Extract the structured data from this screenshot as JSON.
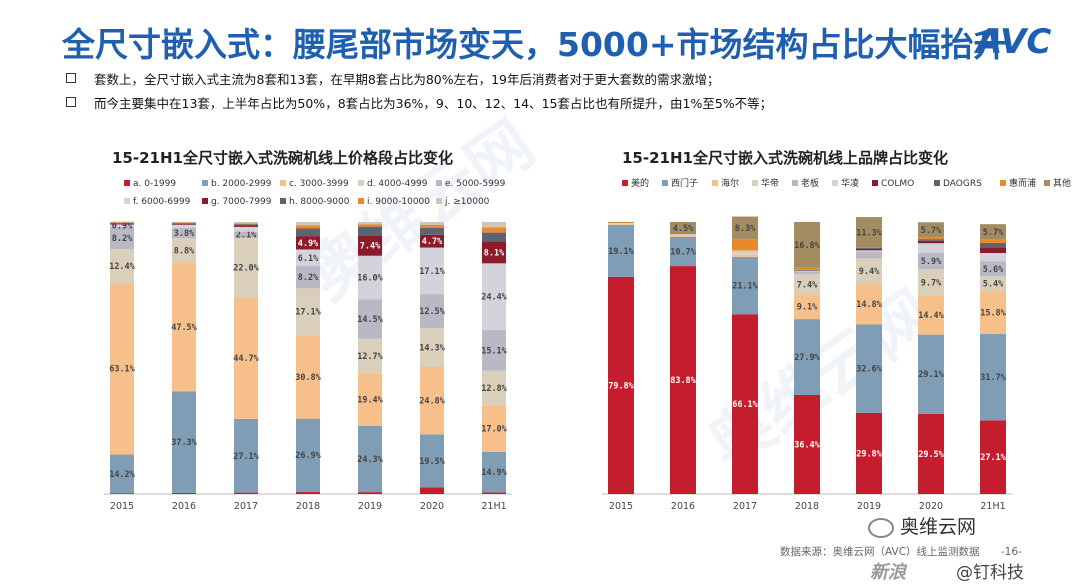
{
  "header": {
    "title": "全尺寸嵌入式：腰尾部市场变天，5000+市场结构占比大幅抬升",
    "logo": "AVC"
  },
  "bullets": [
    "套数上，全尺寸嵌入式主流为8套和13套，在早期8套占比为80%左右，19年后消费者对于更大套数的需求激增；",
    "而今主要集中在13套，上半年占比为50%，8套占比为36%，9、10、12、14、15套占比也有所提升，由1%至5%不等；"
  ],
  "footer": {
    "source": "数据来源：奥维云网（AVC）线上监测数据",
    "page": "-16-",
    "wechat": "奥维云网",
    "brand_left": "新浪",
    "brand_right": "@钉科技"
  },
  "watermark": "奥维云网",
  "chart_data": [
    {
      "type": "bar",
      "stacked": true,
      "title": "15-21H1全尺寸嵌入式洗碗机线上价格段占比变化",
      "categories": [
        "2015",
        "2016",
        "2017",
        "2018",
        "2019",
        "2020",
        "21H1"
      ],
      "ylim": [
        0,
        100
      ],
      "legend_position": "top",
      "series": [
        {
          "name": "a. 0-1999",
          "color": "#c41e2e",
          "values": [
            0.3,
            0.4,
            0.5,
            0.8,
            0.7,
            2.4,
            0.6
          ],
          "labels": [
            "",
            "",
            "",
            "",
            "",
            "",
            ""
          ]
        },
        {
          "name": "b. 2000-2999",
          "color": "#7f9db5",
          "values": [
            14.2,
            37.3,
            27.1,
            26.9,
            24.3,
            19.5,
            14.9
          ],
          "labels": [
            "14.2%",
            "37.3%",
            "27.1%",
            "26.9%",
            "24.3%",
            "19.5%",
            "14.9%"
          ]
        },
        {
          "name": "c. 3000-3999",
          "color": "#f7c08a",
          "values": [
            63.1,
            47.5,
            44.7,
            30.8,
            19.4,
            24.8,
            17.0
          ],
          "labels": [
            "63.1%",
            "47.5%",
            "44.7%",
            "30.8%",
            "19.4%",
            "24.8%",
            "17.0%"
          ]
        },
        {
          "name": "d. 4000-4999",
          "color": "#d9cfbb",
          "values": [
            12.4,
            8.8,
            22.0,
            17.1,
            12.7,
            14.3,
            12.8
          ],
          "labels": [
            "12.4%",
            "8.8%",
            "22.0%",
            "17.1%",
            "12.7%",
            "14.3%",
            "12.8%"
          ]
        },
        {
          "name": "e. 5000-5999",
          "color": "#b9b9c6",
          "values": [
            8.2,
            3.8,
            2.1,
            8.2,
            14.5,
            12.5,
            15.1
          ],
          "labels": [
            "8.2%",
            "3.8%",
            "2.1%",
            "8.2%",
            "14.5%",
            "12.5%",
            "15.1%"
          ]
        },
        {
          "name": "f. 6000-6999",
          "color": "#d3d3dc",
          "values": [
            0.9,
            1.2,
            1.8,
            6.1,
            16.0,
            17.1,
            24.4
          ],
          "labels": [
            "0.9%",
            "",
            "",
            "6.1%",
            "16.0%",
            "17.1%",
            "24.4%"
          ]
        },
        {
          "name": "g. 7000-7999",
          "color": "#8b1a2b",
          "values": [
            0.3,
            0.3,
            0.5,
            4.9,
            7.4,
            4.7,
            8.1
          ],
          "labels": [
            "",
            "",
            "",
            "4.9%",
            "7.4%",
            "4.7%",
            "8.1%"
          ]
        },
        {
          "name": "h. 8000-9000",
          "color": "#5d6370",
          "values": [
            0.3,
            0.3,
            0.5,
            2.8,
            3.3,
            2.5,
            3.2
          ],
          "labels": [
            "",
            "",
            "",
            "",
            "",
            "",
            ""
          ]
        },
        {
          "name": "i. 9000-10000",
          "color": "#e8892c",
          "values": [
            0.2,
            0.2,
            0.3,
            1.2,
            0.9,
            1.1,
            1.9
          ],
          "labels": [
            "",
            "",
            "",
            "",
            "",
            "",
            ""
          ]
        },
        {
          "name": "j. ≥10000",
          "color": "#cfc7b3",
          "values": [
            0.3,
            0.2,
            0.5,
            1.2,
            0.8,
            1.1,
            2.0
          ],
          "labels": [
            "",
            "",
            "",
            "",
            "",
            "",
            ""
          ]
        }
      ]
    },
    {
      "type": "bar",
      "stacked": true,
      "title": "15-21H1全尺寸嵌入式洗碗机线上品牌占比变化",
      "categories": [
        "2015",
        "2016",
        "2017",
        "2018",
        "2019",
        "2020",
        "21H1"
      ],
      "ylim": [
        0,
        100
      ],
      "legend_position": "top",
      "series": [
        {
          "name": "美的",
          "color": "#c41e2e",
          "values": [
            79.8,
            83.8,
            66.1,
            36.4,
            29.8,
            29.5,
            27.1
          ],
          "labels": [
            "79.8%",
            "83.8%",
            "66.1%",
            "36.4%",
            "29.8%",
            "29.5%",
            "27.1%"
          ]
        },
        {
          "name": "西门子",
          "color": "#7f9db5",
          "values": [
            19.1,
            10.7,
            21.1,
            27.9,
            32.6,
            29.1,
            31.7
          ],
          "labels": [
            "19.1%",
            "10.7%",
            "21.1%",
            "27.9%",
            "32.6%",
            "29.1%",
            "31.7%"
          ]
        },
        {
          "name": "海尔",
          "color": "#f7c08a",
          "values": [
            0.3,
            0.5,
            0.8,
            9.1,
            14.8,
            14.4,
            15.8
          ],
          "labels": [
            "",
            "",
            "",
            "9.1%",
            "14.8%",
            "14.4%",
            "15.8%"
          ]
        },
        {
          "name": "华帝",
          "color": "#d9cfbb",
          "values": [
            0.2,
            0.3,
            1.2,
            7.4,
            9.4,
            9.7,
            5.4
          ],
          "labels": [
            "",
            "",
            "",
            "7.4%",
            "9.4%",
            "9.7%",
            "5.4%"
          ]
        },
        {
          "name": "老板",
          "color": "#b9b9c6",
          "values": [
            0.1,
            0.1,
            0.2,
            1.0,
            2.6,
            5.9,
            5.6
          ],
          "labels": [
            "",
            "",
            "",
            "",
            "",
            "5.9%",
            "5.6%"
          ]
        },
        {
          "name": "华凌",
          "color": "#d3d3dc",
          "values": [
            0.1,
            0.1,
            0.1,
            0.3,
            0.4,
            3.6,
            3.0
          ],
          "labels": [
            "",
            "",
            "",
            "",
            "",
            "",
            ""
          ]
        },
        {
          "name": "COLMO",
          "color": "#8b1a2b",
          "values": [
            0,
            0,
            0,
            0,
            0.5,
            0.9,
            2.1
          ],
          "labels": [
            "",
            "",
            "",
            "",
            "",
            "",
            ""
          ]
        },
        {
          "name": "DAOGRS",
          "color": "#5d6370",
          "values": [
            0,
            0,
            0,
            0.3,
            0.4,
            0.6,
            1.6
          ],
          "labels": [
            "",
            "",
            "",
            "",
            "",
            "",
            ""
          ]
        },
        {
          "name": "惠而浦",
          "color": "#e8892c",
          "values": [
            0.2,
            0,
            4.2,
            0.8,
            0,
            0.5,
            1.2
          ],
          "labels": [
            "",
            "",
            "",
            "",
            "",
            "",
            ""
          ]
        },
        {
          "name": "其他",
          "color": "#a48c62",
          "values": [
            0.2,
            4.5,
            8.3,
            16.8,
            11.3,
            5.7,
            5.7
          ],
          "labels": [
            "",
            "4.5%",
            "8.3%",
            "16.8%",
            "11.3%",
            "5.7%",
            "5.7%"
          ]
        }
      ]
    }
  ]
}
